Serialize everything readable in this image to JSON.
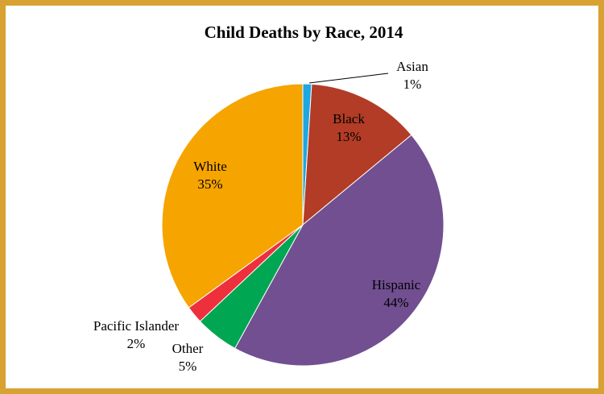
{
  "chart_data": {
    "type": "pie",
    "title": "Child Deaths by Race, 2014",
    "start_angle_deg": 0,
    "direction": "clockwise",
    "slices": [
      {
        "key": "asian",
        "label": "Asian",
        "value": 1,
        "value_label": "1%",
        "color": "#1ea7e1"
      },
      {
        "key": "black",
        "label": "Black",
        "value": 13,
        "value_label": "13%",
        "color": "#b23c26"
      },
      {
        "key": "hispanic",
        "label": "Hispanic",
        "value": 44,
        "value_label": "44%",
        "color": "#714f91"
      },
      {
        "key": "other",
        "label": "Other",
        "value": 5,
        "value_label": "5%",
        "color": "#00a651"
      },
      {
        "key": "pacific-islander",
        "label": "Pacific Islander",
        "value": 2,
        "value_label": "2%",
        "color": "#ee2f3c"
      },
      {
        "key": "white",
        "label": "White",
        "value": 35,
        "value_label": "35%",
        "color": "#f6a400"
      }
    ]
  }
}
